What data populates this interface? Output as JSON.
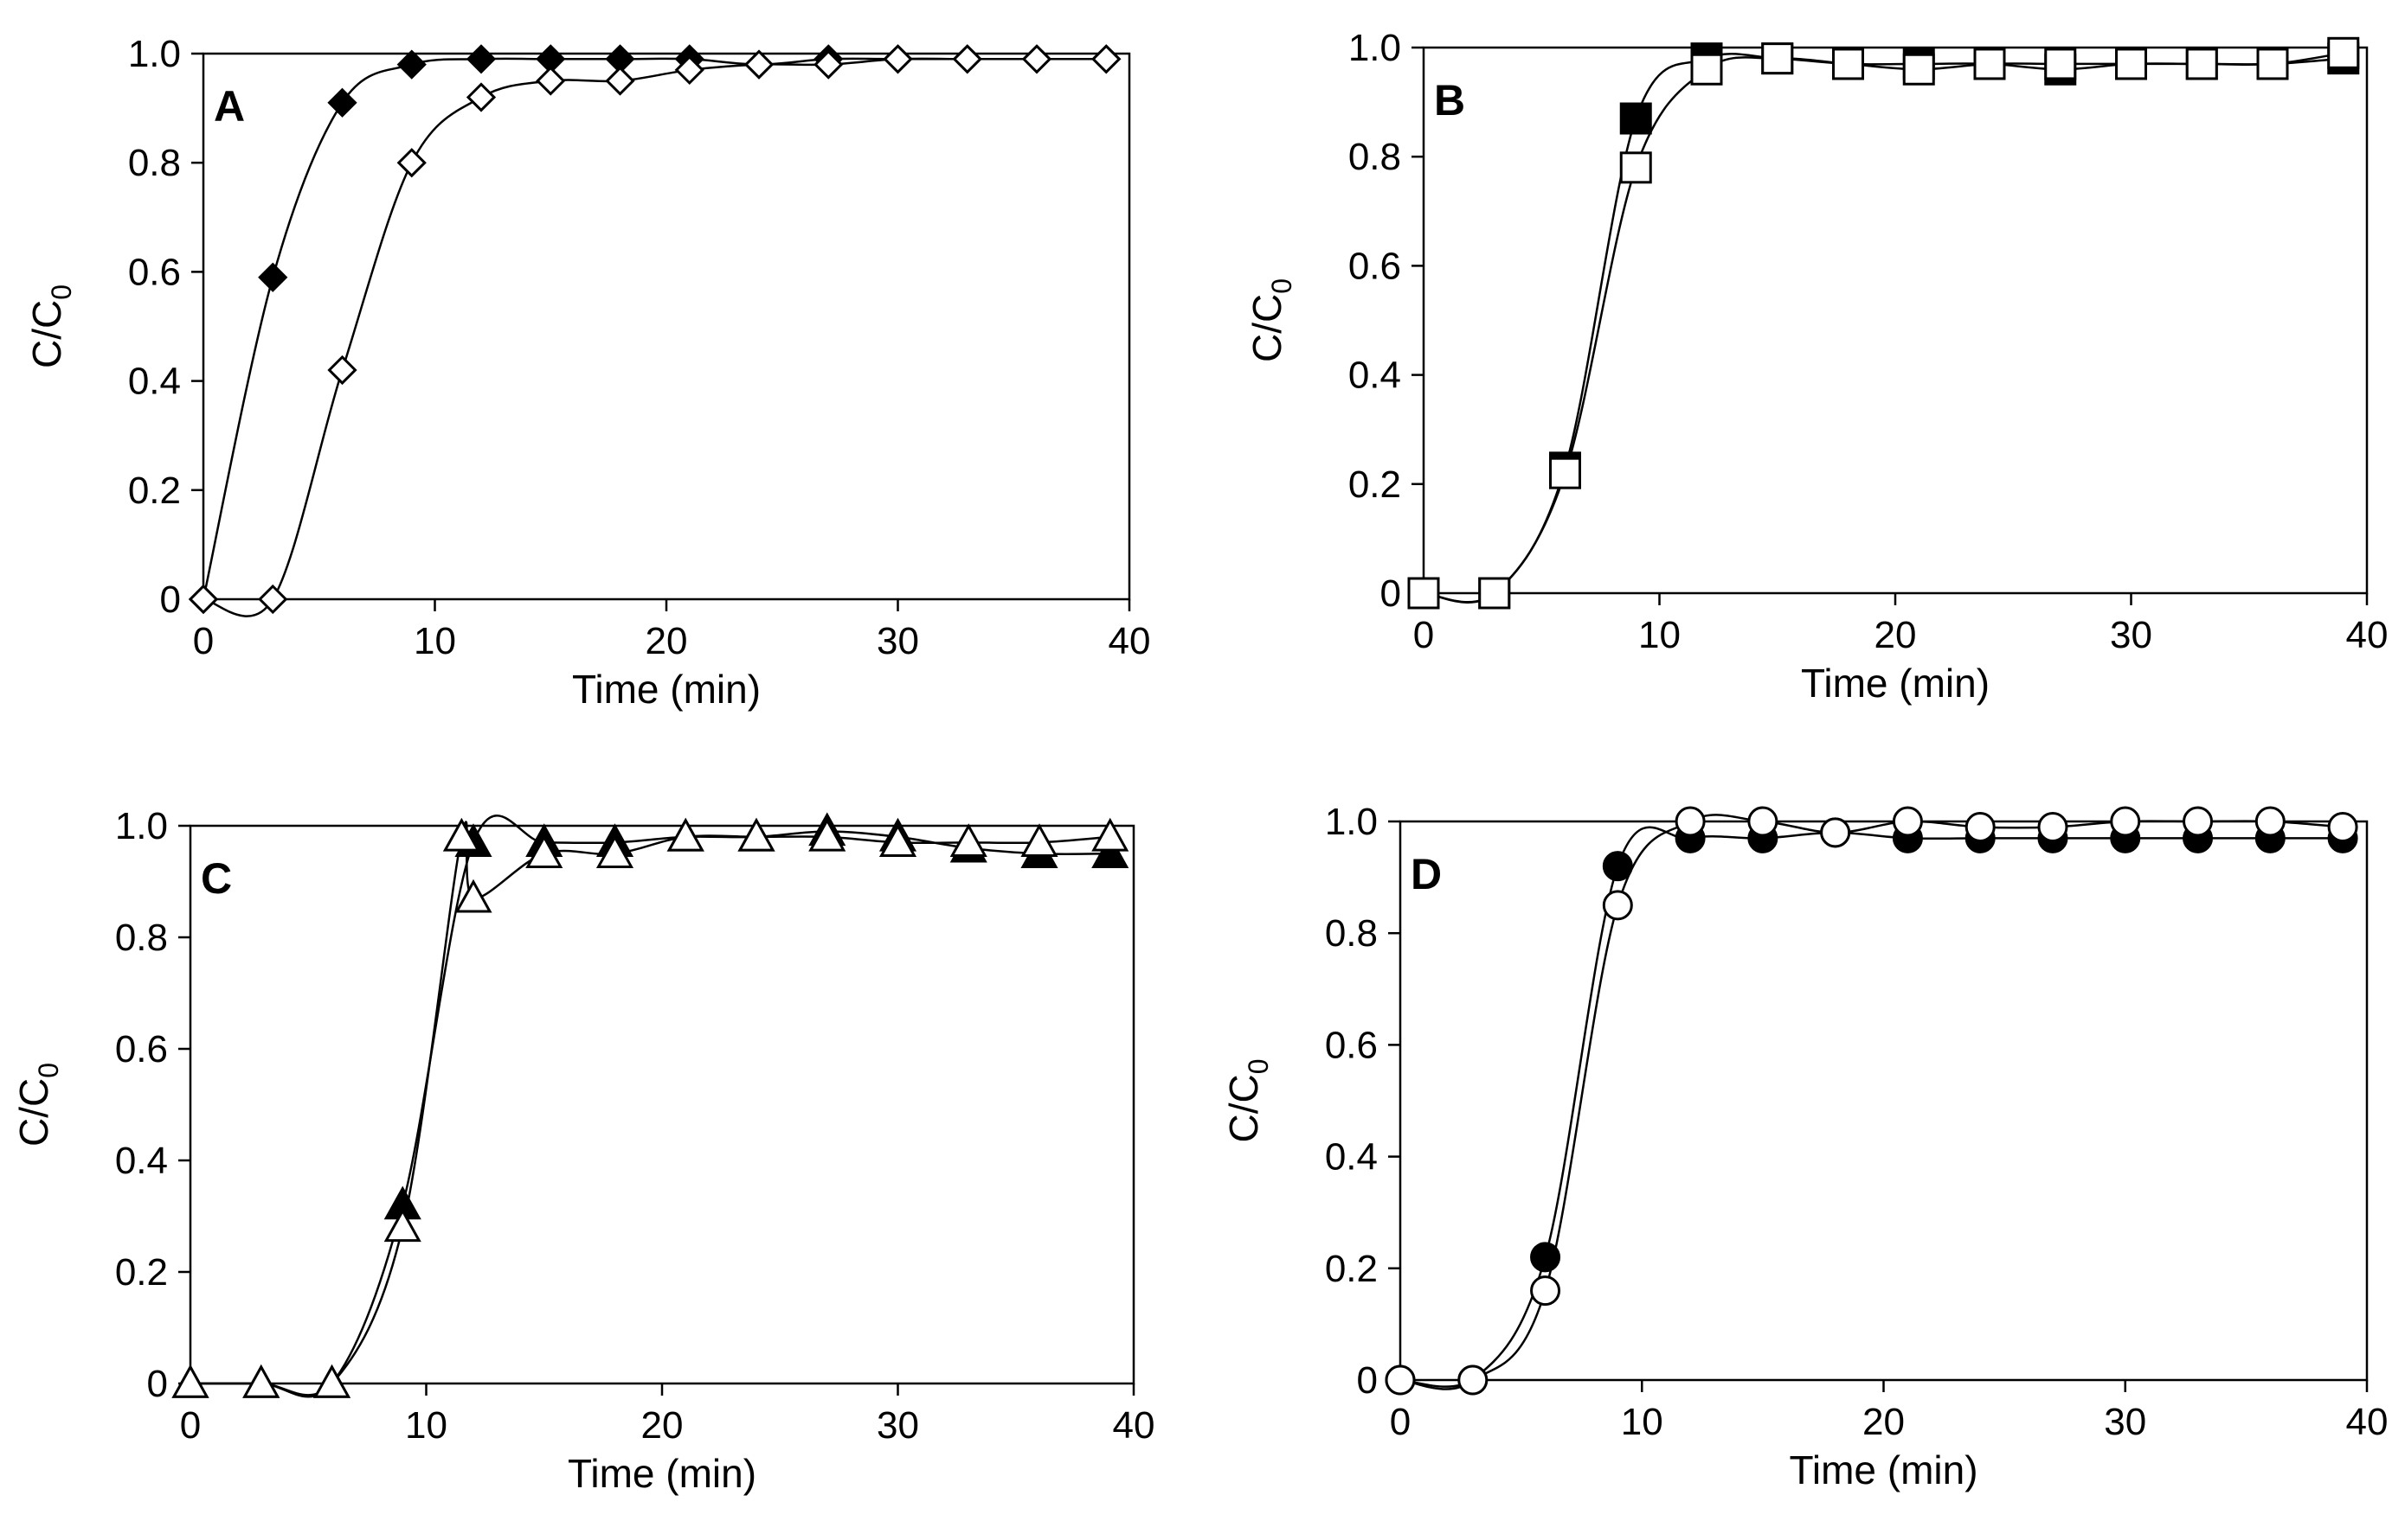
{
  "chart_data": [
    {
      "type": "scatter",
      "panel_label": "A",
      "xlabel": "Time (min)",
      "ylabel": "C/C",
      "ylabel_subscript": "0",
      "xlim": [
        0,
        40
      ],
      "ylim": [
        0,
        1.0
      ],
      "x_ticks": [
        "0",
        "10",
        "20",
        "30",
        "40"
      ],
      "y_ticks": [
        "0",
        "0.2",
        "0.4",
        "0.6",
        "0.8",
        "1.0"
      ],
      "grid": false,
      "series": [
        {
          "name": "filled diamond",
          "marker": "diamond",
          "filled": true,
          "x": [
            0,
            3,
            6,
            9,
            12,
            15,
            18,
            21,
            24,
            27,
            30,
            33,
            36,
            39
          ],
          "values": [
            0,
            0.59,
            0.91,
            0.98,
            0.99,
            0.99,
            0.99,
            0.99,
            0.98,
            0.99,
            0.99,
            0.99,
            0.99,
            0.99
          ]
        },
        {
          "name": "open diamond",
          "marker": "diamond",
          "filled": false,
          "x": [
            0,
            3,
            6,
            9,
            12,
            15,
            18,
            21,
            24,
            27,
            30,
            33,
            36,
            39
          ],
          "values": [
            0,
            0,
            0.42,
            0.8,
            0.92,
            0.95,
            0.95,
            0.97,
            0.98,
            0.98,
            0.99,
            0.99,
            0.99,
            0.99
          ]
        }
      ]
    },
    {
      "type": "scatter",
      "panel_label": "B",
      "xlabel": "Time (min)",
      "ylabel": "C/C",
      "ylabel_subscript": "0",
      "xlim": [
        0,
        40
      ],
      "ylim": [
        0,
        1.0
      ],
      "x_ticks": [
        "0",
        "10",
        "20",
        "30",
        "40"
      ],
      "y_ticks": [
        "0",
        "0.2",
        "0.4",
        "0.6",
        "0.8",
        "1.0"
      ],
      "grid": false,
      "series": [
        {
          "name": "filled square",
          "marker": "square",
          "filled": true,
          "x": [
            0,
            3,
            6,
            9,
            12,
            15,
            18,
            21,
            24,
            27,
            30,
            33,
            36,
            39
          ],
          "values": [
            0,
            0,
            0.23,
            0.87,
            0.98,
            0.98,
            0.97,
            0.97,
            0.97,
            0.96,
            0.97,
            0.97,
            0.97,
            0.98
          ]
        },
        {
          "name": "open square",
          "marker": "square",
          "filled": false,
          "x": [
            0,
            3,
            6,
            9,
            12,
            15,
            18,
            21,
            24,
            27,
            30,
            33,
            36,
            39
          ],
          "values": [
            0,
            0,
            0.22,
            0.78,
            0.96,
            0.98,
            0.97,
            0.96,
            0.97,
            0.97,
            0.97,
            0.97,
            0.97,
            0.99
          ]
        }
      ]
    },
    {
      "type": "scatter",
      "panel_label": "C",
      "xlabel": "Time (min)",
      "ylabel": "C/C",
      "ylabel_subscript": "0",
      "xlim": [
        0,
        40
      ],
      "ylim": [
        0,
        1.0
      ],
      "x_ticks": [
        "0",
        "10",
        "20",
        "30",
        "40"
      ],
      "y_ticks": [
        "0",
        "0.2",
        "0.4",
        "0.6",
        "0.8",
        "1.0"
      ],
      "grid": false,
      "series": [
        {
          "name": "filled triangle",
          "marker": "triangle",
          "filled": true,
          "x": [
            0,
            3,
            6,
            9,
            12,
            15,
            18,
            21,
            24,
            27,
            30,
            33,
            36,
            39
          ],
          "values": [
            0,
            0,
            0,
            0.32,
            0.97,
            0.97,
            0.97,
            0.98,
            0.98,
            0.99,
            0.98,
            0.96,
            0.95,
            0.95
          ]
        },
        {
          "name": "open triangle",
          "marker": "triangle",
          "filled": false,
          "x": [
            0,
            3,
            6,
            9,
            11.5,
            12,
            15,
            18,
            21,
            24,
            27,
            30,
            33,
            36,
            39
          ],
          "values": [
            0,
            0,
            0,
            0.28,
            0.98,
            0.87,
            0.95,
            0.95,
            0.98,
            0.98,
            0.98,
            0.97,
            0.97,
            0.97,
            0.98
          ]
        }
      ]
    },
    {
      "type": "scatter",
      "panel_label": "D",
      "xlabel": "Time (min)",
      "ylabel": "C/C",
      "ylabel_subscript": "0",
      "xlim": [
        0,
        40
      ],
      "ylim": [
        0,
        1.0
      ],
      "x_ticks": [
        "0",
        "10",
        "20",
        "30",
        "40"
      ],
      "y_ticks": [
        "0",
        "0.2",
        "0.4",
        "0.6",
        "0.8",
        "1.0"
      ],
      "grid": false,
      "series": [
        {
          "name": "filled circle",
          "marker": "circle",
          "filled": true,
          "x": [
            0,
            3,
            6,
            9,
            12,
            15,
            18,
            21,
            24,
            27,
            30,
            33,
            36,
            39
          ],
          "values": [
            0,
            0,
            0.22,
            0.92,
            0.97,
            0.97,
            0.98,
            0.97,
            0.97,
            0.97,
            0.97,
            0.97,
            0.97,
            0.97
          ]
        },
        {
          "name": "open circle",
          "marker": "circle",
          "filled": false,
          "x": [
            0,
            3,
            6,
            9,
            12,
            15,
            18,
            21,
            24,
            27,
            30,
            33,
            36,
            39
          ],
          "values": [
            0,
            0,
            0.16,
            0.85,
            1.0,
            1.0,
            0.98,
            1.0,
            0.99,
            0.99,
            1.0,
            1.0,
            1.0,
            0.99
          ]
        }
      ]
    }
  ]
}
